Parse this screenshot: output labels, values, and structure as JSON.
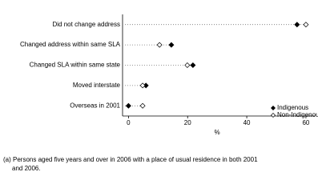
{
  "chart_data": {
    "type": "dot",
    "categories": [
      "Did not change address",
      "Changed address within same SLA",
      "Changed SLA within same state",
      "Moved interstate",
      "Overseas in 2001"
    ],
    "series": [
      {
        "name": "Indigenous",
        "color": "#000000",
        "values": [
          57,
          14.5,
          21.8,
          5.9,
          0
        ]
      },
      {
        "name": "Non-Indigenous",
        "color": "#ffffff",
        "values": [
          60,
          10.5,
          19.9,
          4.8,
          4.8
        ]
      }
    ],
    "xlabel": "%",
    "xlim": [
      -2,
      63
    ],
    "xticks": [
      0,
      20,
      40,
      60
    ],
    "legend": "lower right",
    "footnote_lines": [
      "(a) Persons aged five years and over in 2006 with a place of usual residence in both 2001",
      "and 2006."
    ]
  }
}
